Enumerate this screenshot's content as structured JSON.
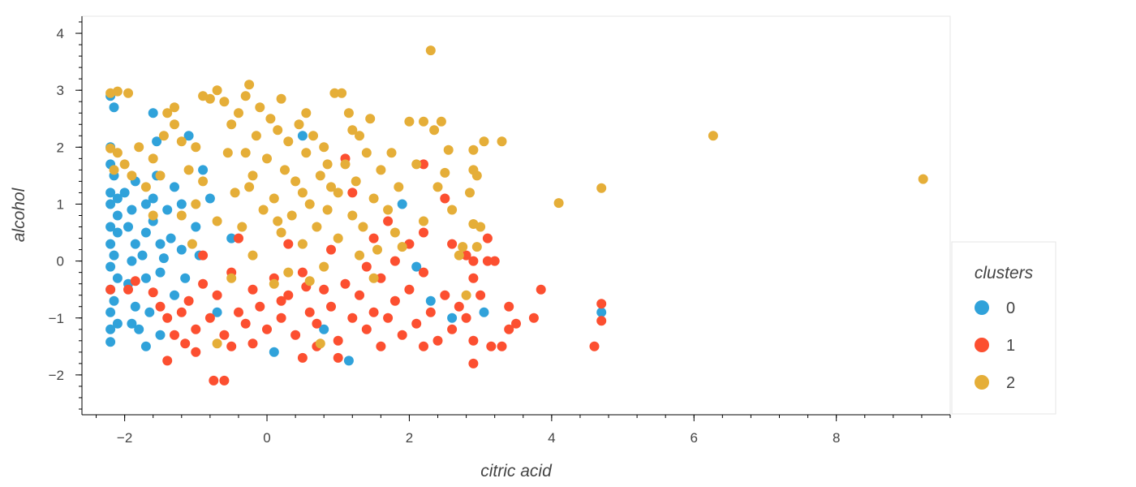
{
  "chart_data": {
    "type": "scatter",
    "title": "",
    "xlabel": "citric acid",
    "ylabel": "alcohol",
    "xlim": [
      -2.6,
      9.6
    ],
    "ylim": [
      -2.7,
      4.3
    ],
    "x_ticks": [
      -2,
      0,
      2,
      4,
      6,
      8
    ],
    "y_ticks": [
      -2,
      -1,
      0,
      1,
      2,
      3,
      4
    ],
    "grid": false,
    "legend": {
      "title": "clusters",
      "position": "right"
    },
    "series": [
      {
        "name": "0",
        "color": "#30a2da",
        "points": [
          [
            -2.2,
            2.9
          ],
          [
            -2.15,
            2.7
          ],
          [
            -2.2,
            2.0
          ],
          [
            -2.2,
            1.7
          ],
          [
            -2.15,
            1.5
          ],
          [
            -2.2,
            1.2
          ],
          [
            -2.1,
            1.1
          ],
          [
            -2.2,
            1.0
          ],
          [
            -2.1,
            0.8
          ],
          [
            -2.2,
            0.6
          ],
          [
            -2.1,
            0.5
          ],
          [
            -2.2,
            0.3
          ],
          [
            -2.15,
            0.1
          ],
          [
            -2.2,
            -0.1
          ],
          [
            -2.1,
            -0.3
          ],
          [
            -2.2,
            -0.5
          ],
          [
            -2.15,
            -0.7
          ],
          [
            -2.2,
            -0.9
          ],
          [
            -2.1,
            -1.1
          ],
          [
            -2.2,
            -1.2
          ],
          [
            -2.2,
            -1.42
          ],
          [
            -2.0,
            1.2
          ],
          [
            -1.9,
            0.9
          ],
          [
            -1.95,
            0.6
          ],
          [
            -1.85,
            0.3
          ],
          [
            -1.9,
            0.0
          ],
          [
            -1.95,
            -0.4
          ],
          [
            -1.85,
            -0.8
          ],
          [
            -1.9,
            -1.1
          ],
          [
            -1.8,
            -1.2
          ],
          [
            -1.7,
            1.0
          ],
          [
            -1.7,
            0.5
          ],
          [
            -1.75,
            0.1
          ],
          [
            -1.7,
            -0.3
          ],
          [
            -1.65,
            -0.9
          ],
          [
            -1.6,
            0.7
          ],
          [
            -1.6,
            1.1
          ],
          [
            -1.55,
            2.1
          ],
          [
            -1.55,
            1.5
          ],
          [
            -1.5,
            0.3
          ],
          [
            -1.5,
            -0.2
          ],
          [
            -1.5,
            -1.3
          ],
          [
            -1.7,
            -1.5
          ],
          [
            -1.6,
            2.6
          ],
          [
            -1.4,
            0.9
          ],
          [
            -1.3,
            1.3
          ],
          [
            -1.35,
            0.4
          ],
          [
            -1.3,
            -0.6
          ],
          [
            -1.2,
            1.0
          ],
          [
            -1.2,
            0.2
          ],
          [
            -1.1,
            2.2
          ],
          [
            -1.15,
            -0.3
          ],
          [
            -1.0,
            0.6
          ],
          [
            -0.9,
            1.6
          ],
          [
            -0.95,
            0.1
          ],
          [
            -0.8,
            1.1
          ],
          [
            -0.5,
            0.4
          ],
          [
            -0.7,
            -0.9
          ],
          [
            0.1,
            -1.6
          ],
          [
            0.5,
            2.2
          ],
          [
            0.8,
            -1.2
          ],
          [
            1.15,
            -1.75
          ],
          [
            1.9,
            1.0
          ],
          [
            2.1,
            -0.1
          ],
          [
            2.3,
            -0.7
          ],
          [
            2.6,
            -1.0
          ],
          [
            3.05,
            -0.9
          ],
          [
            4.7,
            -0.9
          ],
          [
            -1.45,
            0.05
          ],
          [
            -1.85,
            1.4
          ]
        ]
      },
      {
        "name": "1",
        "color": "#fc4f30",
        "points": [
          [
            -2.2,
            -0.5
          ],
          [
            -1.95,
            -0.5
          ],
          [
            -1.85,
            -0.35
          ],
          [
            -1.6,
            -0.55
          ],
          [
            -1.5,
            -0.8
          ],
          [
            -1.4,
            -1.0
          ],
          [
            -1.3,
            -1.3
          ],
          [
            -1.2,
            -0.9
          ],
          [
            -1.1,
            -0.7
          ],
          [
            -1.0,
            -1.2
          ],
          [
            -0.9,
            -0.4
          ],
          [
            -0.8,
            -1.0
          ],
          [
            -0.7,
            -0.6
          ],
          [
            -0.6,
            -1.3
          ],
          [
            -0.5,
            -0.2
          ],
          [
            -0.4,
            -0.9
          ],
          [
            -0.3,
            -1.1
          ],
          [
            -0.2,
            -0.5
          ],
          [
            -0.1,
            -0.8
          ],
          [
            0.0,
            -1.2
          ],
          [
            0.1,
            -0.3
          ],
          [
            0.2,
            -1.0
          ],
          [
            0.3,
            -0.6
          ],
          [
            0.4,
            -1.3
          ],
          [
            0.5,
            -0.2
          ],
          [
            0.6,
            -0.9
          ],
          [
            0.7,
            -1.1
          ],
          [
            0.8,
            -0.5
          ],
          [
            0.9,
            -0.8
          ],
          [
            1.0,
            -1.4
          ],
          [
            1.1,
            -0.4
          ],
          [
            1.2,
            -1.0
          ],
          [
            1.3,
            -0.6
          ],
          [
            1.4,
            -1.2
          ],
          [
            1.5,
            -0.9
          ],
          [
            1.6,
            -0.3
          ],
          [
            1.7,
            -1.0
          ],
          [
            1.8,
            -0.7
          ],
          [
            1.9,
            -1.3
          ],
          [
            2.0,
            -0.5
          ],
          [
            2.1,
            -1.1
          ],
          [
            2.2,
            -0.2
          ],
          [
            2.3,
            -0.9
          ],
          [
            2.4,
            -1.4
          ],
          [
            2.5,
            -0.6
          ],
          [
            2.6,
            -1.2
          ],
          [
            2.7,
            -0.8
          ],
          [
            2.8,
            -1.0
          ],
          [
            2.9,
            -1.8
          ],
          [
            2.9,
            -0.3
          ],
          [
            2.9,
            0.0
          ],
          [
            2.9,
            -1.4
          ],
          [
            3.0,
            -0.6
          ],
          [
            3.15,
            -1.5
          ],
          [
            3.2,
            0.0
          ],
          [
            3.3,
            -1.5
          ],
          [
            3.4,
            -1.2
          ],
          [
            3.4,
            -0.8
          ],
          [
            3.5,
            -1.1
          ],
          [
            3.75,
            -1.0
          ],
          [
            3.85,
            -0.5
          ],
          [
            4.6,
            -1.5
          ],
          [
            4.7,
            -0.75
          ],
          [
            4.7,
            -1.05
          ],
          [
            3.1,
            0.4
          ],
          [
            3.1,
            0.0
          ],
          [
            2.5,
            1.1
          ],
          [
            2.2,
            1.7
          ],
          [
            1.7,
            0.7
          ],
          [
            1.5,
            0.4
          ],
          [
            1.1,
            1.8
          ],
          [
            1.2,
            1.2
          ],
          [
            -0.75,
            -2.1
          ],
          [
            -0.6,
            -2.1
          ],
          [
            -1.4,
            -1.75
          ],
          [
            -1.0,
            -1.6
          ],
          [
            0.5,
            -1.7
          ],
          [
            1.0,
            -1.7
          ],
          [
            -0.9,
            0.1
          ],
          [
            -0.4,
            0.4
          ],
          [
            0.3,
            0.3
          ],
          [
            0.9,
            0.2
          ],
          [
            1.4,
            -0.1
          ],
          [
            2.0,
            0.3
          ],
          [
            2.2,
            0.5
          ],
          [
            2.6,
            0.3
          ],
          [
            2.8,
            0.1
          ],
          [
            1.8,
            0.0
          ],
          [
            -0.2,
            -1.45
          ],
          [
            0.7,
            -1.5
          ],
          [
            1.6,
            -1.5
          ],
          [
            2.2,
            -1.5
          ],
          [
            -1.15,
            -1.45
          ],
          [
            -0.5,
            -1.5
          ],
          [
            0.2,
            -0.7
          ],
          [
            0.55,
            -0.45
          ]
        ]
      },
      {
        "name": "2",
        "color": "#e5ae38",
        "points": [
          [
            -2.2,
            2.95
          ],
          [
            -2.1,
            2.98
          ],
          [
            -1.95,
            2.95
          ],
          [
            -2.2,
            1.98
          ],
          [
            -2.1,
            1.9
          ],
          [
            -2.0,
            1.7
          ],
          [
            -2.15,
            1.6
          ],
          [
            -1.9,
            1.5
          ],
          [
            -1.8,
            2.0
          ],
          [
            -1.6,
            1.8
          ],
          [
            -1.5,
            1.5
          ],
          [
            -1.45,
            2.2
          ],
          [
            -1.4,
            2.6
          ],
          [
            -1.3,
            2.7
          ],
          [
            -1.3,
            2.4
          ],
          [
            -1.2,
            2.1
          ],
          [
            -1.1,
            1.6
          ],
          [
            -1.0,
            2.0
          ],
          [
            -1.0,
            1.0
          ],
          [
            -0.9,
            1.4
          ],
          [
            -0.9,
            2.9
          ],
          [
            -0.8,
            2.85
          ],
          [
            -0.7,
            3.0
          ],
          [
            -0.6,
            2.8
          ],
          [
            -0.55,
            1.9
          ],
          [
            -0.5,
            2.4
          ],
          [
            -0.45,
            1.2
          ],
          [
            -0.4,
            2.6
          ],
          [
            -0.35,
            0.6
          ],
          [
            -0.3,
            2.9
          ],
          [
            -0.25,
            3.1
          ],
          [
            -0.2,
            1.5
          ],
          [
            -0.15,
            2.2
          ],
          [
            -0.1,
            2.7
          ],
          [
            -0.05,
            0.9
          ],
          [
            0.0,
            1.8
          ],
          [
            0.05,
            2.5
          ],
          [
            0.1,
            1.1
          ],
          [
            0.15,
            2.3
          ],
          [
            0.2,
            0.5
          ],
          [
            0.25,
            1.6
          ],
          [
            0.3,
            2.1
          ],
          [
            0.35,
            0.8
          ],
          [
            0.4,
            1.4
          ],
          [
            0.45,
            2.4
          ],
          [
            0.5,
            0.3
          ],
          [
            0.55,
            1.9
          ],
          [
            0.6,
            1.0
          ],
          [
            0.65,
            2.2
          ],
          [
            0.7,
            0.6
          ],
          [
            0.75,
            1.5
          ],
          [
            0.8,
            2.0
          ],
          [
            0.85,
            0.9
          ],
          [
            0.9,
            1.3
          ],
          [
            0.95,
            2.95
          ],
          [
            1.05,
            2.95
          ],
          [
            1.0,
            0.4
          ],
          [
            1.1,
            1.7
          ],
          [
            1.15,
            2.6
          ],
          [
            1.2,
            0.8
          ],
          [
            1.25,
            1.4
          ],
          [
            1.3,
            2.2
          ],
          [
            1.35,
            0.6
          ],
          [
            1.4,
            1.9
          ],
          [
            1.5,
            1.1
          ],
          [
            1.55,
            0.2
          ],
          [
            1.6,
            1.6
          ],
          [
            1.7,
            0.9
          ],
          [
            1.75,
            1.9
          ],
          [
            1.8,
            0.5
          ],
          [
            1.85,
            1.3
          ],
          [
            2.0,
            2.45
          ],
          [
            2.1,
            1.7
          ],
          [
            2.2,
            0.7
          ],
          [
            2.3,
            3.7
          ],
          [
            2.35,
            2.3
          ],
          [
            2.4,
            1.3
          ],
          [
            2.45,
            2.45
          ],
          [
            2.5,
            1.55
          ],
          [
            2.55,
            1.95
          ],
          [
            2.6,
            0.9
          ],
          [
            2.7,
            0.1
          ],
          [
            2.75,
            0.25
          ],
          [
            2.8,
            -0.6
          ],
          [
            2.85,
            1.2
          ],
          [
            2.9,
            1.6
          ],
          [
            2.9,
            1.95
          ],
          [
            2.9,
            0.65
          ],
          [
            2.95,
            1.5
          ],
          [
            3.0,
            0.6
          ],
          [
            3.05,
            2.1
          ],
          [
            3.3,
            2.1
          ],
          [
            4.1,
            1.02
          ],
          [
            4.7,
            1.28
          ],
          [
            6.27,
            2.2
          ],
          [
            9.22,
            1.44
          ],
          [
            -0.7,
            0.7
          ],
          [
            -0.2,
            0.1
          ],
          [
            0.3,
            -0.2
          ],
          [
            0.8,
            -0.1
          ],
          [
            1.3,
            0.1
          ],
          [
            -0.5,
            -0.3
          ],
          [
            0.6,
            -0.35
          ],
          [
            -0.25,
            1.3
          ],
          [
            0.15,
            0.7
          ],
          [
            0.5,
            1.2
          ],
          [
            0.85,
            1.7
          ],
          [
            1.0,
            1.2
          ],
          [
            -0.3,
            1.9
          ],
          [
            0.2,
            2.85
          ],
          [
            0.55,
            2.6
          ],
          [
            1.2,
            2.3
          ],
          [
            -1.6,
            0.8
          ],
          [
            -1.2,
            0.8
          ],
          [
            -0.7,
            -1.45
          ],
          [
            0.75,
            -1.45
          ],
          [
            1.5,
            -0.3
          ],
          [
            1.9,
            0.25
          ],
          [
            -1.7,
            1.3
          ],
          [
            -1.05,
            0.3
          ],
          [
            0.1,
            -0.4
          ],
          [
            1.45,
            2.5
          ],
          [
            2.95,
            0.25
          ],
          [
            2.2,
            2.45
          ]
        ]
      }
    ]
  }
}
